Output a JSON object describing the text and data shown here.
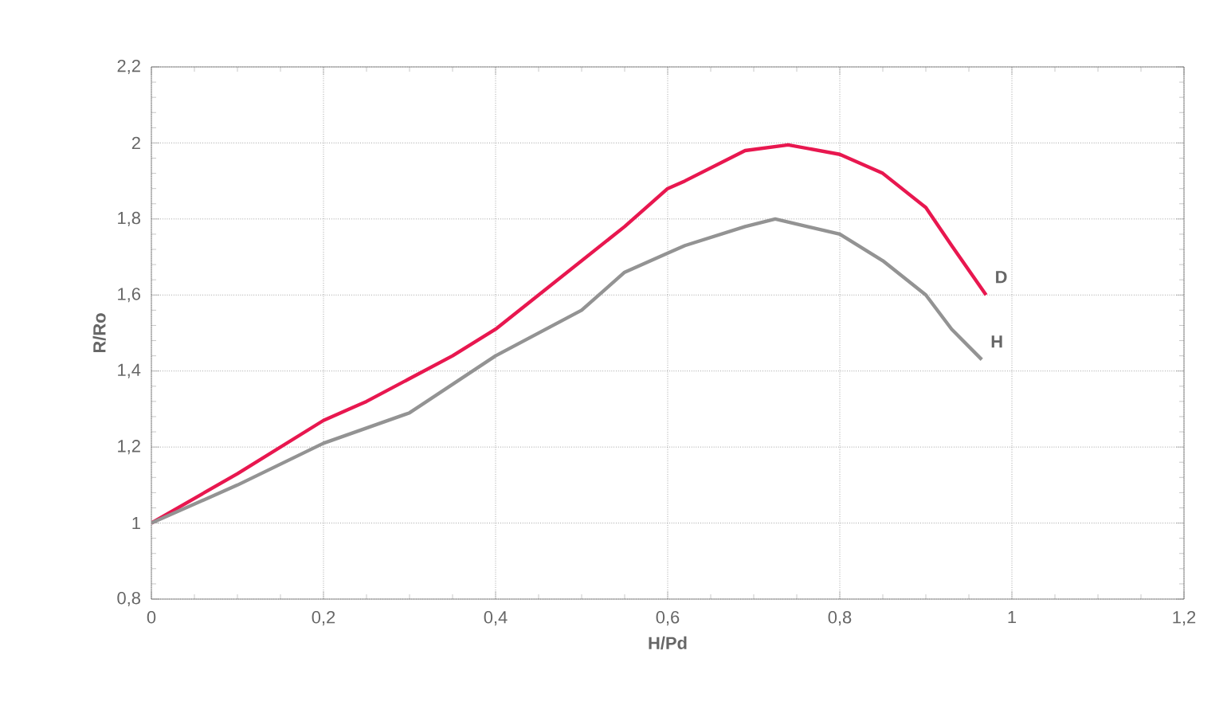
{
  "chart_data": {
    "type": "line",
    "xlabel": "H/Pd",
    "ylabel": "R/Ro",
    "xlim": [
      0,
      1.2
    ],
    "ylim": [
      0.8,
      2.2
    ],
    "xticks": [
      0,
      {
        "value": 0.2,
        "label": "0,2"
      },
      {
        "value": 0.4,
        "label": "0,4"
      },
      {
        "value": 0.6,
        "label": "0,6"
      },
      {
        "value": 0.8,
        "label": "0,8"
      },
      1,
      {
        "value": 1.2,
        "label": "1,2"
      }
    ],
    "yticks": [
      {
        "value": 0.8,
        "label": "0,8"
      },
      1,
      {
        "value": 1.2,
        "label": "1,2"
      },
      {
        "value": 1.4,
        "label": "1,4"
      },
      {
        "value": 1.6,
        "label": "1,6"
      },
      {
        "value": 1.8,
        "label": "1,8"
      },
      2,
      {
        "value": 2.2,
        "label": "2,2"
      }
    ],
    "grid": true,
    "line_style": "solid",
    "series": [
      {
        "name": "D",
        "color": "#e8174f",
        "x": [
          0,
          0.1,
          0.2,
          0.25,
          0.3,
          0.35,
          0.4,
          0.5,
          0.55,
          0.6,
          0.62,
          0.69,
          0.74,
          0.8,
          0.85,
          0.9,
          0.93,
          0.97
        ],
        "values": [
          1.0,
          1.13,
          1.27,
          1.32,
          1.38,
          1.44,
          1.51,
          1.69,
          1.78,
          1.88,
          1.9,
          1.98,
          1.995,
          1.97,
          1.92,
          1.83,
          1.73,
          1.6
        ]
      },
      {
        "name": "H",
        "color": "#939393",
        "x": [
          0,
          0.1,
          0.2,
          0.3,
          0.4,
          0.5,
          0.55,
          0.6,
          0.62,
          0.69,
          0.725,
          0.8,
          0.85,
          0.9,
          0.93,
          0.965
        ],
        "values": [
          1.0,
          1.1,
          1.21,
          1.29,
          1.44,
          1.56,
          1.66,
          1.71,
          1.73,
          1.78,
          1.8,
          1.76,
          1.69,
          1.6,
          1.51,
          1.43
        ]
      }
    ]
  }
}
